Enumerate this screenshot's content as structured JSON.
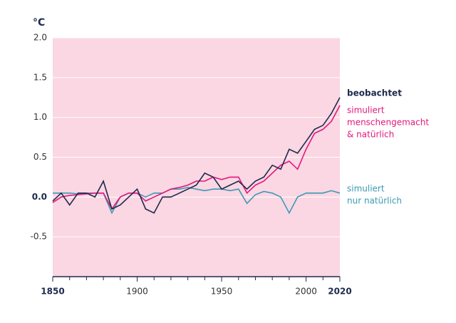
{
  "chart_data": {
    "type": "line",
    "unit": "°C",
    "x": [
      1850,
      1855,
      1860,
      1865,
      1870,
      1875,
      1880,
      1885,
      1890,
      1895,
      1900,
      1905,
      1910,
      1915,
      1920,
      1925,
      1930,
      1935,
      1940,
      1945,
      1950,
      1955,
      1960,
      1965,
      1970,
      1975,
      1980,
      1985,
      1990,
      1995,
      2000,
      2005,
      2010,
      2015,
      2020
    ],
    "series": [
      {
        "name": [
          "beobachtet"
        ],
        "color": "#1d2a4d",
        "bold": true,
        "values": [
          -0.05,
          0.05,
          -0.1,
          0.05,
          0.05,
          0.0,
          0.2,
          -0.15,
          -0.1,
          0.0,
          0.1,
          -0.15,
          -0.2,
          0.0,
          0.0,
          0.05,
          0.1,
          0.15,
          0.3,
          0.25,
          0.1,
          0.15,
          0.2,
          0.1,
          0.2,
          0.25,
          0.4,
          0.35,
          0.6,
          0.55,
          0.7,
          0.85,
          0.9,
          1.05,
          1.25
        ]
      },
      {
        "name": [
          "simuliert",
          "menschengemacht",
          "& natürlich"
        ],
        "color": "#e0197a",
        "values": [
          -0.07,
          0.0,
          0.02,
          0.03,
          0.04,
          0.05,
          0.05,
          -0.15,
          0.0,
          0.05,
          0.05,
          -0.05,
          0.0,
          0.05,
          0.1,
          0.12,
          0.15,
          0.2,
          0.2,
          0.25,
          0.22,
          0.25,
          0.25,
          0.05,
          0.15,
          0.2,
          0.3,
          0.4,
          0.45,
          0.35,
          0.6,
          0.8,
          0.85,
          0.95,
          1.15
        ]
      },
      {
        "name": [
          "simuliert",
          "nur natürlich"
        ],
        "color": "#3b9ab2",
        "values": [
          0.05,
          0.05,
          0.05,
          0.04,
          0.05,
          0.05,
          0.05,
          -0.2,
          0.0,
          0.05,
          0.05,
          0.0,
          0.05,
          0.05,
          0.1,
          0.1,
          0.12,
          0.1,
          0.08,
          0.1,
          0.1,
          0.08,
          0.1,
          -0.08,
          0.03,
          0.07,
          0.05,
          0.0,
          -0.2,
          0.0,
          0.05,
          0.05,
          0.05,
          0.08,
          0.05
        ]
      }
    ],
    "xlim": [
      1850,
      2020
    ],
    "xticks": [
      1850,
      1900,
      1950,
      2000,
      2020
    ],
    "xminorticks": [
      1860,
      1870,
      1880,
      1890,
      1910,
      1920,
      1930,
      1940,
      1960,
      1970,
      1980,
      1990,
      2010
    ],
    "ylim": [
      -1.0,
      2.0
    ],
    "yticks": [
      {
        "value": 2.0,
        "label": "2.0"
      },
      {
        "value": 1.5,
        "label": "1.5"
      },
      {
        "value": 1.0,
        "label": "1.0"
      },
      {
        "value": 0.5,
        "label": "0.5"
      },
      {
        "value": 0.0,
        "label": "0.0"
      },
      {
        "value": -0.5,
        "label": "-0.5"
      }
    ],
    "background": "#fbd6e3",
    "grid": true
  }
}
